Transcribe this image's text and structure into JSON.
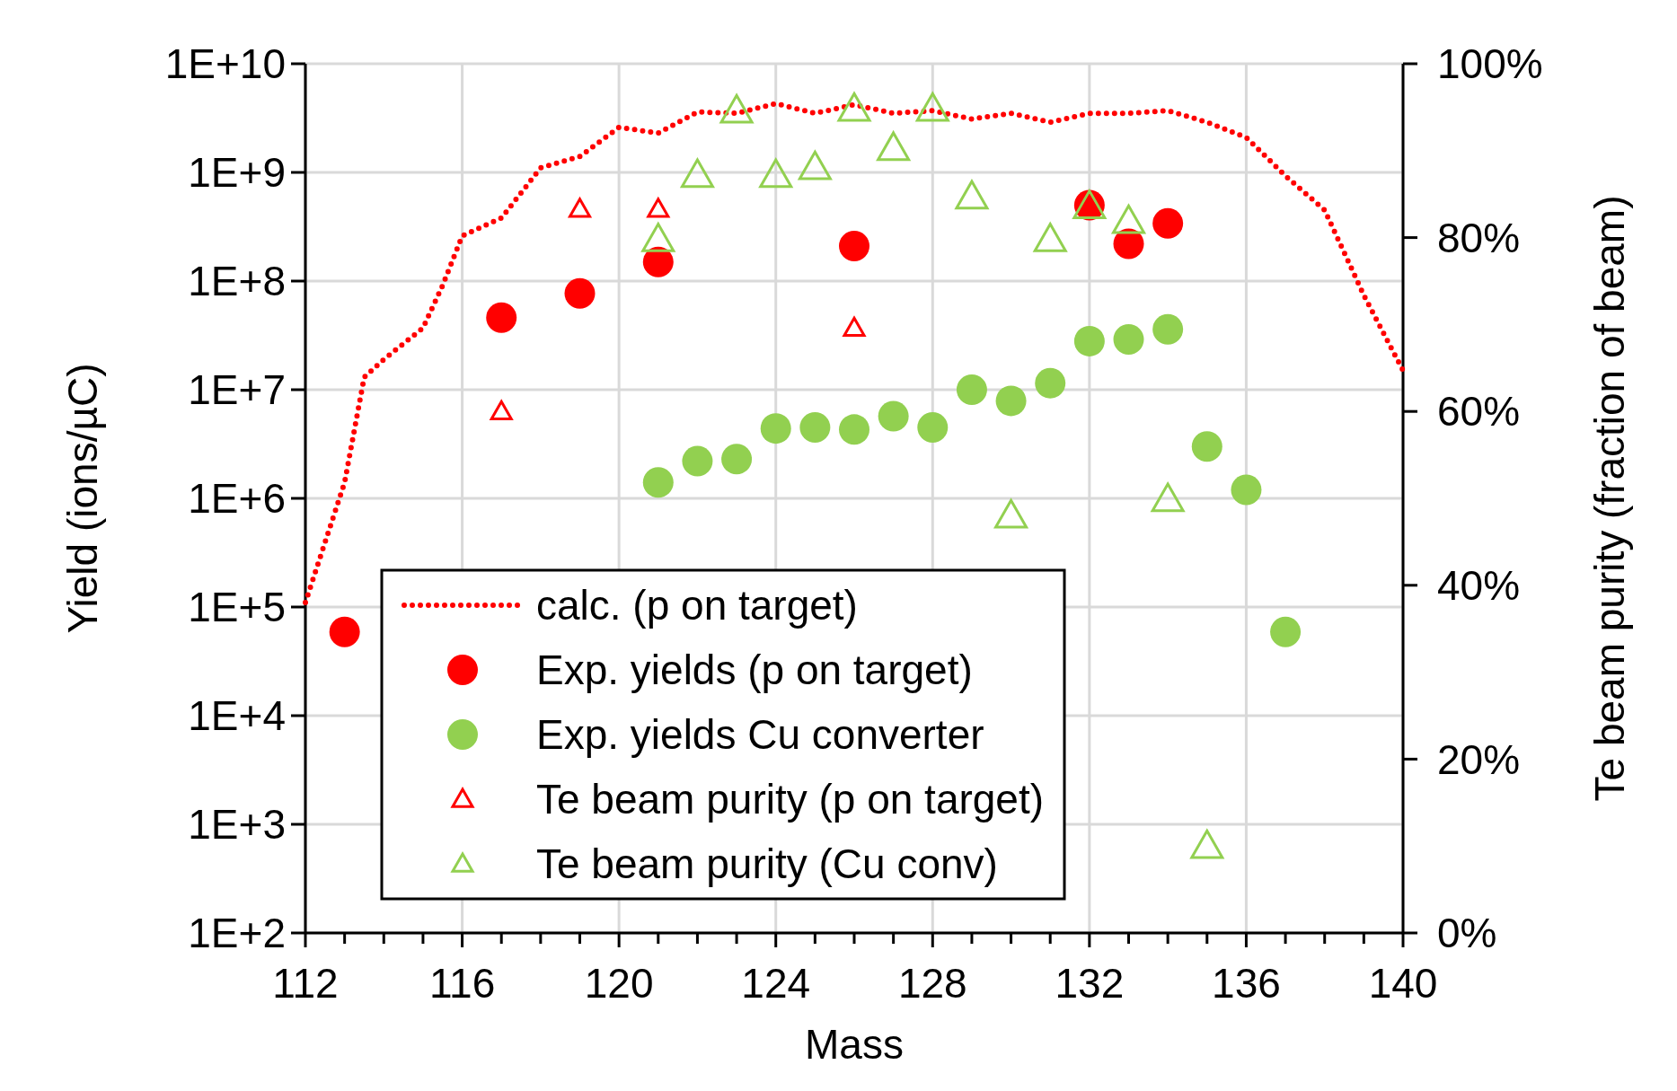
{
  "chart_data": {
    "type": "scatter",
    "xlabel": "Mass",
    "ylabel": "Yield (ions/µC)",
    "y2label": "Te beam purity (fraction of beam)",
    "xlim": [
      112,
      140
    ],
    "xticks": [
      112,
      {
        "value": 113,
        "label": null
      },
      {
        "value": 114,
        "label": null
      },
      {
        "value": 115,
        "label": null
      },
      116,
      {
        "value": 117,
        "label": null
      },
      {
        "value": 118,
        "label": null
      },
      {
        "value": 119,
        "label": null
      },
      120,
      {
        "value": 121,
        "label": null
      },
      {
        "value": 122,
        "label": null
      },
      {
        "value": 123,
        "label": null
      },
      124,
      {
        "value": 125,
        "label": null
      },
      {
        "value": 126,
        "label": null
      },
      {
        "value": 127,
        "label": null
      },
      128,
      {
        "value": 129,
        "label": null
      },
      {
        "value": 130,
        "label": null
      },
      {
        "value": 131,
        "label": null
      },
      132,
      {
        "value": 133,
        "label": null
      },
      {
        "value": 134,
        "label": null
      },
      {
        "value": 135,
        "label": null
      },
      136,
      {
        "value": 137,
        "label": null
      },
      {
        "value": 138,
        "label": null
      },
      {
        "value": 139,
        "label": null
      },
      140
    ],
    "ylim": [
      100,
      10000000000
    ],
    "yticks": [
      {
        "value": 100,
        "label": "1E+2"
      },
      {
        "value": 1000,
        "label": "1E+3"
      },
      {
        "value": 10000,
        "label": "1E+4"
      },
      {
        "value": 100000,
        "label": "1E+5"
      },
      {
        "value": 1000000,
        "label": "1E+6"
      },
      {
        "value": 10000000,
        "label": "1E+7"
      },
      {
        "value": 100000000,
        "label": "1E+8"
      },
      {
        "value": 1000000000,
        "label": "1E+9"
      },
      {
        "value": 10000000000,
        "label": "1E+10"
      }
    ],
    "y2lim": [
      0,
      100
    ],
    "y2ticks": [
      {
        "value": 0,
        "label": "0%"
      },
      {
        "value": 20,
        "label": "20%"
      },
      {
        "value": 40,
        "label": "40%"
      },
      {
        "value": 60,
        "label": "60%"
      },
      {
        "value": 80,
        "label": "80%"
      },
      {
        "value": 100,
        "label": "100%"
      }
    ],
    "log": "y",
    "grid": true,
    "legend": "bottom",
    "series": [
      {
        "name": "calc. (p on target)",
        "type": "line",
        "color": "#ff0000",
        "marker": "none",
        "line_style": "dotted",
        "x": [
          112,
          113,
          113.5,
          114,
          115,
          115.5,
          116,
          117,
          118,
          119,
          120,
          121,
          122,
          123,
          124,
          125,
          126,
          127,
          128,
          129,
          130,
          131,
          132,
          133,
          134,
          135,
          136,
          137,
          138,
          139,
          140
        ],
        "values": [
          110000,
          1400000,
          13000000,
          19000000,
          37000000,
          91000000,
          260000000,
          380000000,
          1100000000,
          1400000000,
          2600000000,
          2300000000,
          3600000000,
          3500000000,
          4300000000,
          3500000000,
          4200000000,
          3500000000,
          3700000000,
          3100000000,
          3500000000,
          2900000000,
          3500000000,
          3500000000,
          3700000000,
          2900000000,
          2100000000,
          930000000,
          450000000,
          74000000,
          15000000
        ]
      },
      {
        "name": "Exp. yields (p on target)",
        "type": "scatter",
        "color": "#ff0000",
        "marker": "circle",
        "x": [
          113,
          117,
          119,
          121,
          126,
          132,
          133,
          134
        ],
        "values": [
          59000,
          46000000,
          77000000,
          150000000,
          210000000,
          500000000,
          220000000,
          340000000
        ]
      },
      {
        "name": "Exp. yields Cu converter",
        "type": "scatter",
        "color": "#92d050",
        "marker": "circle",
        "x": [
          121,
          122,
          123,
          124,
          125,
          126,
          127,
          128,
          129,
          130,
          131,
          132,
          133,
          134,
          135,
          136,
          137
        ],
        "values": [
          1400000,
          2200000,
          2300000,
          4400000,
          4500000,
          4300000,
          5700000,
          4500000,
          10000000,
          7900000,
          11500000,
          28000000,
          29000000,
          36000000,
          3000000,
          1200000,
          59000
        ]
      },
      {
        "name": "Te beam purity (p on target)",
        "type": "scatter",
        "axis": "y2",
        "color": "#ff0000",
        "marker": "triangle",
        "x": [
          117,
          119,
          121,
          126,
          132
        ],
        "values": [
          60.0,
          83.3,
          83.3,
          69.6,
          83.6
        ]
      },
      {
        "name": "Te beam purity (Cu conv)",
        "type": "scatter",
        "axis": "y2",
        "color": "#92d050",
        "marker": "triangle",
        "x": [
          121,
          122,
          123,
          124,
          125,
          126,
          127,
          128,
          129,
          130,
          131,
          132,
          133,
          134,
          135
        ],
        "values": [
          79.8,
          87.2,
          94.6,
          87.2,
          88.1,
          94.8,
          90.3,
          94.8,
          84.7,
          48.0,
          79.8,
          83.6,
          81.9,
          49.9,
          10.0
        ]
      }
    ]
  }
}
